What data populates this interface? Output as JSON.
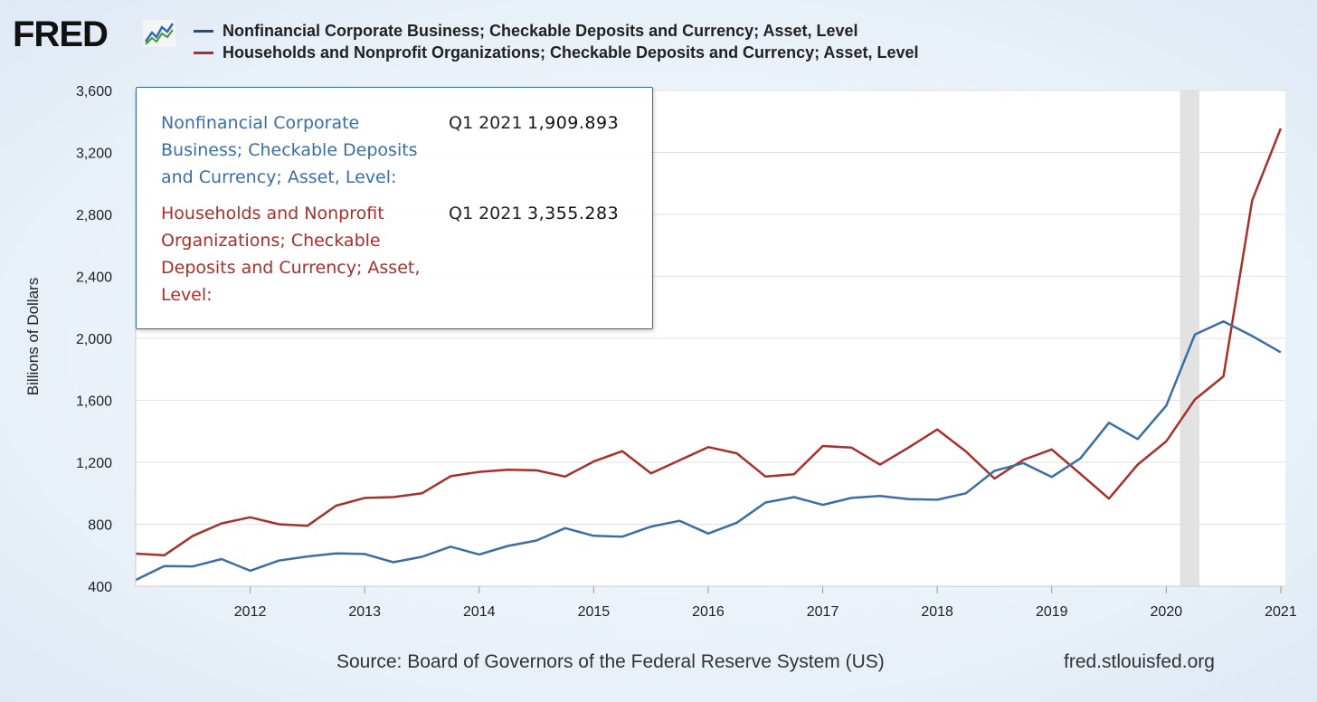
{
  "header": {
    "logo_text": "FRED",
    "logo_icon": "line-graph-icon"
  },
  "colors": {
    "series_blue": "#3a6ea5",
    "series_red": "#a8302b",
    "recession_shade": "#e2e2e2",
    "grid": "#e1e1e1"
  },
  "chart_data": {
    "type": "line",
    "title": "",
    "xlabel": "",
    "ylabel": "Billions of Dollars",
    "ylim": [
      400,
      3600
    ],
    "yticks": [
      "400",
      "800",
      "1,200",
      "1,600",
      "2,000",
      "2,400",
      "2,800",
      "3,200",
      "3,600"
    ],
    "ytick_values": [
      400,
      800,
      1200,
      1600,
      2000,
      2400,
      2800,
      3200,
      3600
    ],
    "xlim": [
      2011.0,
      2021.04
    ],
    "xticks": [
      "2012",
      "2013",
      "2014",
      "2015",
      "2016",
      "2017",
      "2018",
      "2019",
      "2020",
      "2021"
    ],
    "xtick_values": [
      2012,
      2013,
      2014,
      2015,
      2016,
      2017,
      2018,
      2019,
      2020,
      2021
    ],
    "recession": [
      2020.12,
      2020.29
    ],
    "grid": true,
    "legend_position": "top",
    "x": [
      2011.0,
      2011.25,
      2011.5,
      2011.75,
      2012.0,
      2012.25,
      2012.5,
      2012.75,
      2013.0,
      2013.25,
      2013.5,
      2013.75,
      2014.0,
      2014.25,
      2014.5,
      2014.75,
      2015.0,
      2015.25,
      2015.5,
      2015.75,
      2016.0,
      2016.25,
      2016.5,
      2016.75,
      2017.0,
      2017.25,
      2017.5,
      2017.75,
      2018.0,
      2018.25,
      2018.5,
      2018.75,
      2019.0,
      2019.25,
      2019.5,
      2019.75,
      2020.0,
      2020.25,
      2020.5,
      2020.75,
      2021.0
    ],
    "series": [
      {
        "name": "Nonfinancial Corporate Business; Checkable Deposits and Currency; Asset, Level",
        "color": "#3a6ea5",
        "values": [
          440,
          530,
          528,
          575,
          500,
          565,
          592,
          612,
          608,
          555,
          590,
          655,
          605,
          660,
          695,
          775,
          725,
          720,
          785,
          822,
          740,
          810,
          940,
          975,
          925,
          970,
          982,
          962,
          958,
          1000,
          1145,
          1195,
          1105,
          1225,
          1455,
          1350,
          1565,
          2025,
          2110,
          2015,
          1910
        ]
      },
      {
        "name": "Households and Nonprofit Organizations; Checkable Deposits and Currency; Asset, Level",
        "color": "#a8302b",
        "values": [
          610,
          600,
          725,
          805,
          845,
          800,
          790,
          920,
          970,
          975,
          1000,
          1110,
          1138,
          1152,
          1148,
          1108,
          1205,
          1272,
          1128,
          1213,
          1298,
          1258,
          1108,
          1123,
          1305,
          1295,
          1185,
          1295,
          1412,
          1270,
          1095,
          1215,
          1283,
          1125,
          965,
          1185,
          1335,
          1605,
          1755,
          2890,
          3355
        ]
      }
    ]
  },
  "tooltip": {
    "items": [
      {
        "name": "Nonfinancial Corporate Business; Checkable Deposits and Currency; Asset, Level:",
        "date": "Q1 2021",
        "value": "1,909.893"
      },
      {
        "name": "Households and Nonprofit Organizations; Checkable Deposits and Currency; Asset, Level:",
        "date": "Q1 2021",
        "value": "3,355.283"
      }
    ]
  },
  "footer": {
    "source": "Source: Board of Governors of the Federal Reserve System (US)",
    "site": "fred.stlouisfed.org"
  }
}
